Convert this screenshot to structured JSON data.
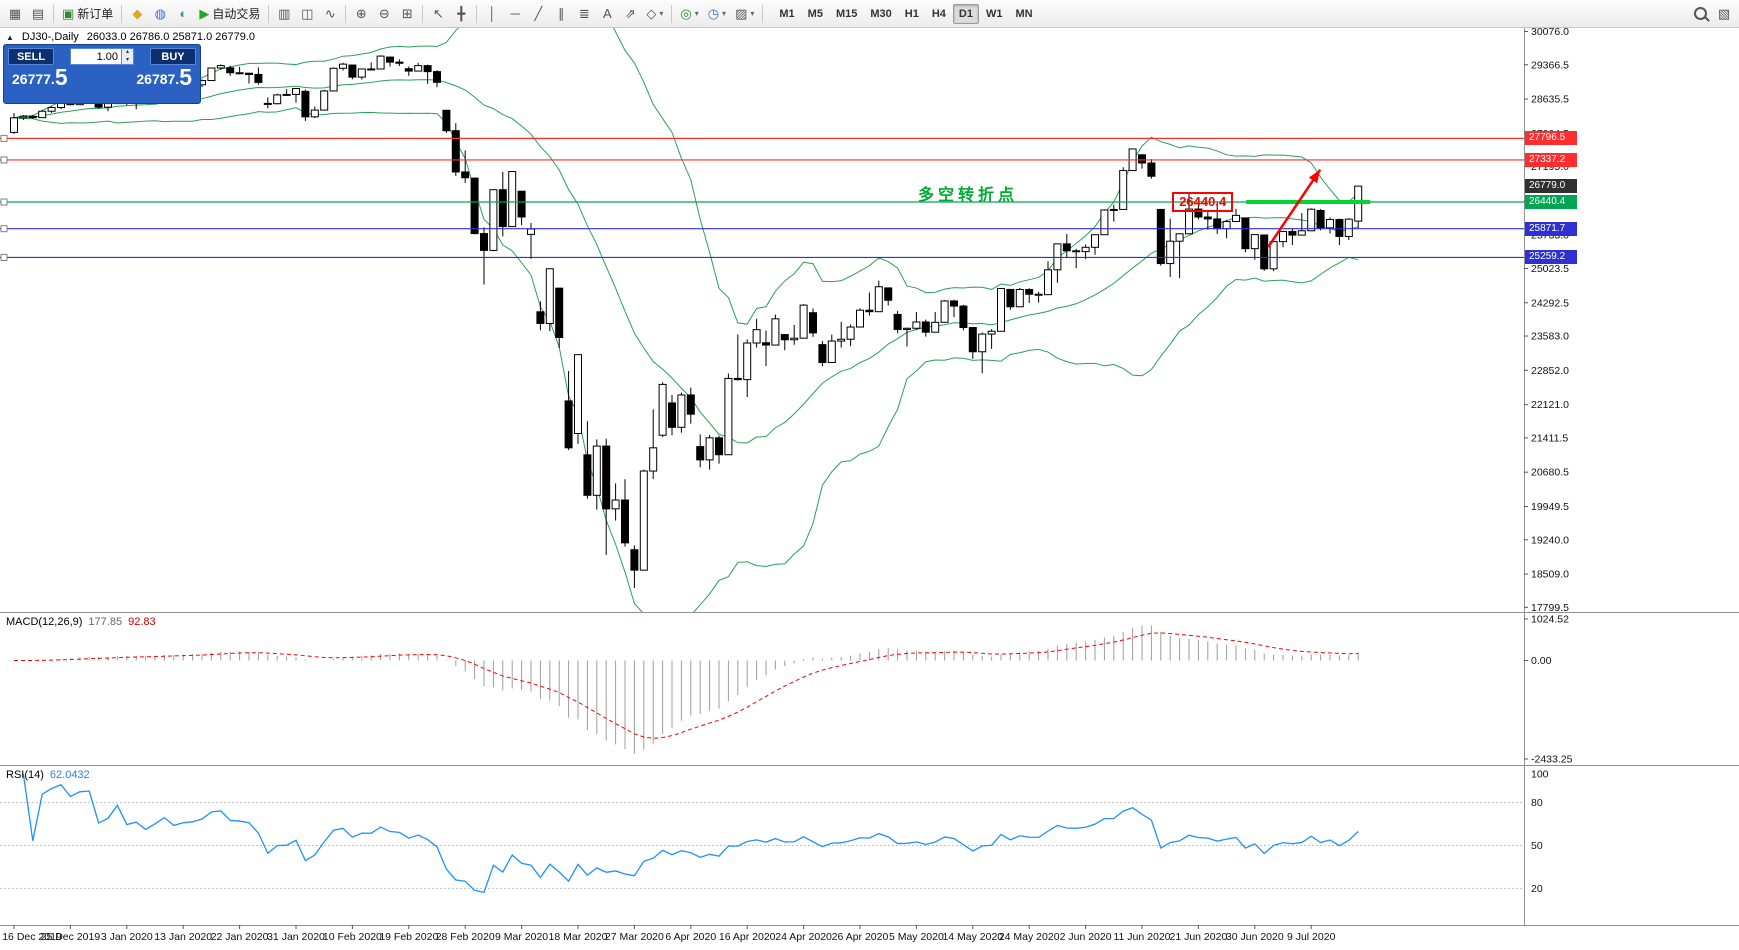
{
  "toolbar": {
    "items": [
      {
        "name": "new-chart-icon",
        "glyph": "▦",
        "color": "#555555"
      },
      {
        "name": "chart-profiles-icon",
        "glyph": "▤",
        "color": "#555555"
      },
      {
        "sep": true
      },
      {
        "name": "new-order-button",
        "icon": "new-order-icon",
        "glyph": "▣",
        "color": "#2e8b2e",
        "label": "新订单"
      },
      {
        "sep": true
      },
      {
        "name": "metaquotes-icon",
        "glyph": "◆",
        "color": "#dca52e"
      },
      {
        "name": "community-icon",
        "glyph": "◍",
        "color": "#3b6fd4"
      },
      {
        "name": "market-icon",
        "glyph": "◐",
        "color": "#2f9e8f"
      },
      {
        "name": "autotrading-button",
        "icon": "autotrading-play-icon",
        "glyph": "▶",
        "color": "#1faa1f",
        "label": "自动交易"
      },
      {
        "sep": true
      },
      {
        "name": "bar-chart-mode-icon",
        "glyph": "▥",
        "color": "#555555"
      },
      {
        "name": "candle-chart-mode-icon",
        "glyph": "◫",
        "color": "#555555"
      },
      {
        "name": "line-chart-mode-icon",
        "glyph": "∿",
        "color": "#555555"
      },
      {
        "sep": true
      },
      {
        "name": "zoom-in-icon",
        "glyph": "⊕",
        "color": "#555555"
      },
      {
        "name": "zoom-out-icon",
        "glyph": "⊖",
        "color": "#555555"
      },
      {
        "name": "tile-windows-icon",
        "glyph": "⊞",
        "color": "#555555"
      },
      {
        "sep": true
      },
      {
        "name": "cursor-icon",
        "glyph": "↖",
        "color": "#555555"
      },
      {
        "name": "crosshair-icon",
        "glyph": "╋",
        "color": "#555555"
      },
      {
        "sep": true
      },
      {
        "name": "vertical-line-icon",
        "glyph": "│",
        "color": "#555555"
      },
      {
        "name": "horizontal-line-icon",
        "glyph": "─",
        "color": "#555555"
      },
      {
        "name": "trendline-icon",
        "glyph": "╱",
        "color": "#555555"
      },
      {
        "name": "channel-icon",
        "glyph": "∥",
        "color": "#555555"
      },
      {
        "name": "fibonacci-icon",
        "glyph": "≣",
        "color": "#555555"
      },
      {
        "name": "text-tool-icon",
        "glyph": "A",
        "color": "#555555"
      },
      {
        "name": "arrows-tool-icon",
        "glyph": "⇗",
        "color": "#555555"
      },
      {
        "name": "shapes-tool-icon",
        "glyph": "◇",
        "color": "#555555",
        "caret": true
      },
      {
        "sep": true
      },
      {
        "name": "indicators-icon",
        "glyph": "◎",
        "color": "#2e8b2e",
        "caret": true
      },
      {
        "name": "periods-icon",
        "glyph": "◷",
        "color": "#3b6fd4",
        "caret": true
      },
      {
        "name": "templates-icon",
        "glyph": "▨",
        "color": "#555555",
        "caret": true
      },
      {
        "sep": true
      }
    ],
    "timeframes": [
      "M1",
      "M5",
      "M15",
      "M30",
      "H1",
      "H4",
      "D1",
      "W1",
      "MN"
    ],
    "active_timeframe": "D1",
    "right_items": [
      {
        "name": "search-icon",
        "css": "search"
      },
      {
        "name": "new-window-icon",
        "glyph": "▧",
        "color": "#555555"
      }
    ]
  },
  "trade_panel": {
    "sell_label": "SELL",
    "buy_label": "BUY",
    "volume": "1.00",
    "spin_up": "▴",
    "spin_down": "▾",
    "sell_price": "26777.",
    "sell_price_big": "5",
    "buy_price": "26787.",
    "buy_price_big": "5"
  },
  "chart": {
    "collapse_arrow": "▲",
    "symbol_period": "DJ30-,Daily",
    "ohlc_text": "26033.0 26786.0 25871.0 26779.0",
    "annotation_text": "多空转折点",
    "annotation_price": "26440.4"
  },
  "indicators": {
    "macd_name": "MACD(12,26,9)",
    "macd_value": "177.85",
    "macd_signal": "92.83",
    "rsi_name": "RSI(14)",
    "rsi_value": "62.0432"
  },
  "chart_data": {
    "type": "candlestick",
    "symbol": "DJ30-",
    "timeframe": "Daily",
    "current_bar": {
      "open": 26033.0,
      "high": 26786.0,
      "low": 25871.0,
      "close": 26779.0
    },
    "bid": 26777.5,
    "ask": 26787.5,
    "price_scale": {
      "min": 17700,
      "max": 30150
    },
    "y_axis_labels": [
      "30076.0",
      "29366.5",
      "28635.5",
      "27904.5",
      "27195.0",
      "26464.0",
      "25733.0",
      "25023.5",
      "24292.5",
      "23583.0",
      "22852.0",
      "22121.0",
      "21411.5",
      "20680.5",
      "19949.5",
      "19240.0",
      "18509.0",
      "17799.5"
    ],
    "x_axis_labels": [
      "16 Dec 2019",
      "25 Dec 2019",
      "3 Jan 2020",
      "13 Jan 2020",
      "22 Jan 2020",
      "31 Jan 2020",
      "10 Feb 2020",
      "19 Feb 2020",
      "28 Feb 2020",
      "9 Mar 2020",
      "18 Mar 2020",
      "27 Mar 2020",
      "6 Apr 2020",
      "16 Apr 2020",
      "24 Apr 2020",
      "26 Apr 2020",
      "5 May 2020",
      "14 May 2020",
      "24 May 2020",
      "2 Jun 2020",
      "11 Jun 2020",
      "21 Jun 2020",
      "30 Jun 2020",
      "9 Jul 2020"
    ],
    "label_every_bars": 6,
    "hlines": [
      {
        "price": 27796.5,
        "label": "27796.5",
        "color": "#ff2e2e"
      },
      {
        "price": 27337.2,
        "label": "27337.2",
        "color": "#ff2e2e"
      },
      {
        "price": 26440.4,
        "label": "26440.4",
        "color": "#00a651"
      },
      {
        "price": 25871.7,
        "label": "25871.7",
        "color": "#3030d0"
      },
      {
        "price": 25259.2,
        "label": "25259.2",
        "color": "#3030d0"
      }
    ],
    "last_price_marker": {
      "price": 26779.0,
      "label": "26779.0",
      "color": "#303030"
    },
    "highlight_segment": {
      "price": 26440.4,
      "color": "#00d42e"
    },
    "trend_arrow": {
      "color": "#ff0000",
      "from_price": 25480,
      "to_price": 27130
    },
    "bollinger": {
      "period": 20,
      "deviation": 2,
      "color": "#2aa05a"
    },
    "macd": {
      "fast": 12,
      "slow": 26,
      "signal": 9,
      "histogram_color": "#9c9c9c",
      "signal_color": "#ff0000",
      "scale_labels": [
        "1024.52",
        "0.00",
        "-2433.25"
      ],
      "scale_min": -2433.25,
      "scale_max": 1024.52
    },
    "rsi": {
      "period": 14,
      "color": "#1e90ff",
      "levels": [
        80,
        50,
        20
      ],
      "scale_labels": [
        "100",
        "80",
        "50",
        "20"
      ]
    },
    "candles_ohlc": [
      [
        27925,
        28337,
        27890,
        28235
      ],
      [
        28235,
        28290,
        28190,
        28267
      ],
      [
        28267,
        28298,
        28211,
        28239
      ],
      [
        28239,
        28400,
        28230,
        28376
      ],
      [
        28376,
        28480,
        28340,
        28455
      ],
      [
        28455,
        28576,
        28420,
        28551
      ],
      [
        28551,
        28580,
        28500,
        28515
      ],
      [
        28515,
        28645,
        28510,
        28621
      ],
      [
        28621,
        28702,
        28560,
        28645
      ],
      [
        28645,
        28664,
        28428,
        28462
      ],
      [
        28462,
        28547,
        28376,
        28538
      ],
      [
        28538,
        28890,
        28530,
        28869
      ],
      [
        28640,
        28716,
        28500,
        28634
      ],
      [
        28634,
        28708,
        28418,
        28703
      ],
      [
        28703,
        28720,
        28565,
        28584
      ],
      [
        28584,
        28750,
        28522,
        28745
      ],
      [
        28745,
        28960,
        28730,
        28957
      ],
      [
        28957,
        28988,
        28820,
        28824
      ],
      [
        28824,
        28910,
        28800,
        28907
      ],
      [
        28907,
        28950,
        28840,
        28939
      ],
      [
        28939,
        29055,
        28890,
        29030
      ],
      [
        29030,
        29303,
        29020,
        29297
      ],
      [
        29297,
        29374,
        29260,
        29348
      ],
      [
        29300,
        29340,
        29130,
        29196
      ],
      [
        29196,
        29320,
        29160,
        29186
      ],
      [
        29186,
        29190,
        28966,
        29160
      ],
      [
        29160,
        29310,
        28944,
        28990
      ],
      [
        28542,
        28671,
        28440,
        28536
      ],
      [
        28536,
        28750,
        28520,
        28723
      ],
      [
        28723,
        28845,
        28700,
        28734
      ],
      [
        28734,
        28866,
        28560,
        28859
      ],
      [
        28800,
        28840,
        28169,
        28256
      ],
      [
        28256,
        28477,
        28230,
        28400
      ],
      [
        28400,
        28830,
        28395,
        28808
      ],
      [
        28808,
        29309,
        28800,
        29291
      ],
      [
        29291,
        29409,
        29245,
        29380
      ],
      [
        29360,
        29368,
        29056,
        29103
      ],
      [
        29103,
        29278,
        29050,
        29277
      ],
      [
        29277,
        29415,
        29246,
        29276
      ],
      [
        29276,
        29568,
        29270,
        29551
      ],
      [
        29530,
        29535,
        29331,
        29423
      ],
      [
        29423,
        29481,
        29340,
        29398
      ],
      [
        29282,
        29330,
        29130,
        29232
      ],
      [
        29232,
        29409,
        29230,
        29348
      ],
      [
        29348,
        29368,
        28960,
        29220
      ],
      [
        29220,
        29250,
        28890,
        28992
      ],
      [
        28395,
        28410,
        27912,
        27961
      ],
      [
        27961,
        28120,
        26998,
        27081
      ],
      [
        27081,
        27542,
        26850,
        26958
      ],
      [
        26950,
        26960,
        25752,
        25767
      ],
      [
        25767,
        25900,
        24681,
        25409
      ],
      [
        25409,
        26706,
        25391,
        26703
      ],
      [
        26703,
        27084,
        25706,
        25917
      ],
      [
        25917,
        27102,
        25910,
        27090
      ],
      [
        26670,
        26680,
        25944,
        26121
      ],
      [
        25750,
        25994,
        25226,
        25865
      ],
      [
        24100,
        24322,
        23707,
        23851
      ],
      [
        23851,
        25020,
        23690,
        25018
      ],
      [
        24604,
        24610,
        23328,
        23553
      ],
      [
        22200,
        22837,
        21154,
        21200
      ],
      [
        21505,
        23189,
        21285,
        23186
      ],
      [
        21050,
        21768,
        20116,
        20188
      ],
      [
        20188,
        21379,
        19882,
        21237
      ],
      [
        21237,
        21394,
        18917,
        19899
      ],
      [
        19899,
        20442,
        19649,
        20087
      ],
      [
        20087,
        20531,
        19094,
        19174
      ],
      [
        19028,
        19121,
        18214,
        18592
      ],
      [
        18592,
        20738,
        18580,
        20705
      ],
      [
        20705,
        22020,
        20538,
        21200
      ],
      [
        21468,
        22595,
        21428,
        22552
      ],
      [
        22157,
        22327,
        21469,
        21637
      ],
      [
        21637,
        22378,
        21522,
        22327
      ],
      [
        22327,
        22482,
        21717,
        21917
      ],
      [
        21227,
        21487,
        20784,
        20943
      ],
      [
        20943,
        21477,
        20735,
        21413
      ],
      [
        21413,
        21457,
        20863,
        21053
      ],
      [
        21053,
        22783,
        21052,
        22680
      ],
      [
        22680,
        23617,
        22634,
        22654
      ],
      [
        22654,
        23513,
        22282,
        23434
      ],
      [
        23434,
        23954,
        23337,
        23719
      ],
      [
        23440,
        23698,
        22943,
        23391
      ],
      [
        23391,
        24041,
        23390,
        23950
      ],
      [
        23614,
        23620,
        23281,
        23504
      ],
      [
        23504,
        23819,
        23396,
        23537
      ],
      [
        23537,
        24264,
        23530,
        24242
      ],
      [
        24080,
        24170,
        23566,
        23650
      ],
      [
        23400,
        23479,
        22941,
        23019
      ],
      [
        23019,
        23613,
        23015,
        23476
      ],
      [
        23476,
        23885,
        23336,
        23515
      ],
      [
        23515,
        23829,
        23367,
        23775
      ],
      [
        23775,
        24174,
        23770,
        24134
      ],
      [
        24134,
        24511,
        24019,
        24102
      ],
      [
        24102,
        24765,
        24100,
        24634
      ],
      [
        24609,
        24620,
        24235,
        24346
      ],
      [
        24044,
        24120,
        23645,
        23724
      ],
      [
        23724,
        23760,
        23361,
        23749
      ],
      [
        23749,
        24094,
        23711,
        23883
      ],
      [
        23883,
        23934,
        23571,
        23665
      ],
      [
        23665,
        24094,
        23660,
        23876
      ],
      [
        23876,
        24349,
        23870,
        24331
      ],
      [
        24331,
        24357,
        23985,
        24222
      ],
      [
        24222,
        24248,
        23707,
        23765
      ],
      [
        23765,
        23773,
        23096,
        23248
      ],
      [
        23248,
        23658,
        22790,
        23625
      ],
      [
        23625,
        23730,
        23310,
        23685
      ],
      [
        23685,
        24602,
        23680,
        24597
      ],
      [
        24577,
        24580,
        24144,
        24207
      ],
      [
        24207,
        24608,
        24200,
        24576
      ],
      [
        24576,
        24600,
        24289,
        24474
      ],
      [
        24474,
        24526,
        24294,
        24465
      ],
      [
        24465,
        25176,
        24460,
        24995
      ],
      [
        24995,
        25549,
        24718,
        25548
      ],
      [
        25548,
        25758,
        25244,
        25401
      ],
      [
        25401,
        25443,
        25031,
        25383
      ],
      [
        25383,
        25536,
        25222,
        25475
      ],
      [
        25475,
        25743,
        25316,
        25743
      ],
      [
        25743,
        26286,
        25740,
        26270
      ],
      [
        26270,
        26384,
        26022,
        26282
      ],
      [
        26282,
        27181,
        26280,
        27111
      ],
      [
        27111,
        27580,
        27110,
        27572
      ],
      [
        27447,
        27450,
        27151,
        27272
      ],
      [
        27272,
        27355,
        26938,
        26990
      ],
      [
        26282,
        26294,
        25082,
        25128
      ],
      [
        25128,
        26087,
        24843,
        25605
      ],
      [
        25605,
        25772,
        24817,
        25763
      ],
      [
        25763,
        26611,
        25760,
        26290
      ],
      [
        26290,
        26400,
        26068,
        26120
      ],
      [
        26120,
        26246,
        25848,
        26080
      ],
      [
        26080,
        26451,
        25759,
        25871
      ],
      [
        25871,
        26059,
        25667,
        26025
      ],
      [
        26025,
        26298,
        26016,
        26156
      ],
      [
        26101,
        26110,
        25367,
        25446
      ],
      [
        25446,
        25749,
        25210,
        25746
      ],
      [
        25737,
        25740,
        24971,
        25016
      ],
      [
        25016,
        25606,
        24966,
        25596
      ],
      [
        25596,
        25823,
        25476,
        25813
      ],
      [
        25813,
        25880,
        25523,
        25735
      ],
      [
        25735,
        26204,
        25730,
        25827
      ],
      [
        25827,
        26306,
        25820,
        26287
      ],
      [
        26260,
        26289,
        25835,
        25890
      ],
      [
        25890,
        26109,
        25773,
        26067
      ],
      [
        26067,
        26086,
        25523,
        25706
      ],
      [
        25706,
        26095,
        25630,
        26075
      ],
      [
        26033,
        26786,
        25871,
        26779
      ]
    ]
  }
}
